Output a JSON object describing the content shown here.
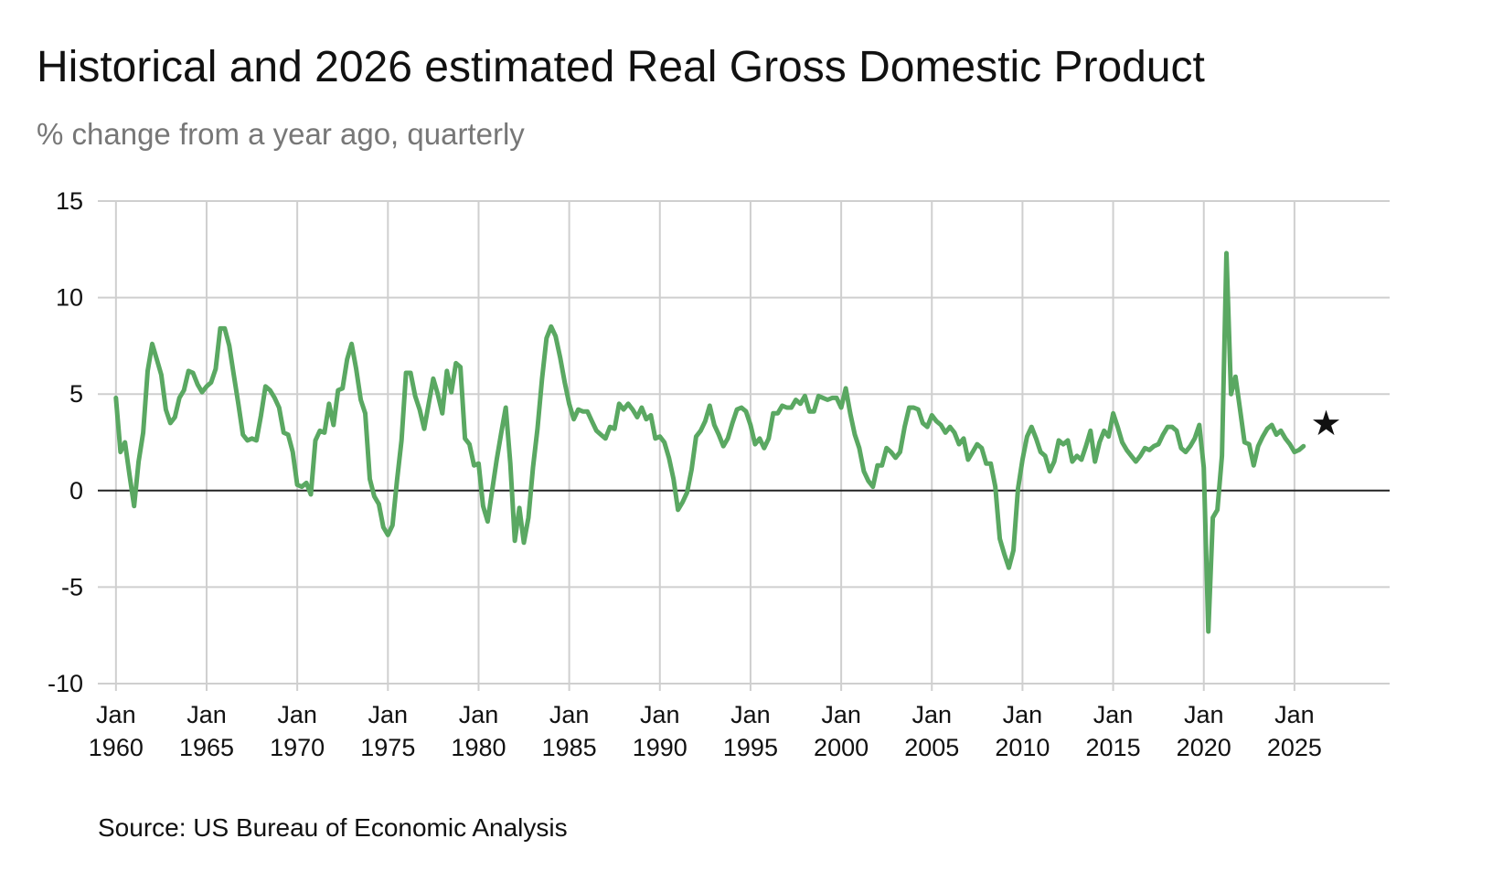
{
  "title": "Historical and 2026 estimated Real Gross Domestic Product",
  "subtitle": "% change from a year ago, quarterly",
  "source": "Source: US Bureau of Economic Analysis",
  "colors": {
    "series": "#5aa862",
    "grid": "#cfcfcf",
    "zero_line": "#222222",
    "marker": "#111111"
  },
  "chart_data": {
    "type": "line",
    "title": "Historical and 2026 estimated Real Gross Domestic Product",
    "ylabel": "% change from a year ago, quarterly",
    "xlabel": "",
    "ylim": [
      -10,
      15
    ],
    "xlim": [
      1959.0,
      2030.25
    ],
    "grid": true,
    "y_ticks": [
      15,
      10,
      5,
      0,
      -5,
      -10
    ],
    "x_ticks": [
      {
        "x": 1960,
        "line1": "Jan",
        "line2": "1960"
      },
      {
        "x": 1965,
        "line1": "Jan",
        "line2": "1965"
      },
      {
        "x": 1970,
        "line1": "Jan",
        "line2": "1970"
      },
      {
        "x": 1975,
        "line1": "Jan",
        "line2": "1975"
      },
      {
        "x": 1980,
        "line1": "Jan",
        "line2": "1980"
      },
      {
        "x": 1985,
        "line1": "Jan",
        "line2": "1985"
      },
      {
        "x": 1990,
        "line1": "Jan",
        "line2": "1990"
      },
      {
        "x": 1995,
        "line1": "Jan",
        "line2": "1995"
      },
      {
        "x": 2000,
        "line1": "Jan",
        "line2": "2000"
      },
      {
        "x": 2005,
        "line1": "Jan",
        "line2": "2005"
      },
      {
        "x": 2010,
        "line1": "Jan",
        "line2": "2010"
      },
      {
        "x": 2015,
        "line1": "Jan",
        "line2": "2015"
      },
      {
        "x": 2020,
        "line1": "Jan",
        "line2": "2020"
      },
      {
        "x": 2025,
        "line1": "Jan",
        "line2": "2025"
      }
    ],
    "series": [
      {
        "name": "Real GDP, % change from a year ago",
        "points": [
          [
            1960.0,
            4.8
          ],
          [
            1960.25,
            2.0
          ],
          [
            1960.5,
            2.5
          ],
          [
            1960.75,
            0.8
          ],
          [
            1961.0,
            -0.8
          ],
          [
            1961.25,
            1.5
          ],
          [
            1961.5,
            3.0
          ],
          [
            1961.75,
            6.2
          ],
          [
            1962.0,
            7.6
          ],
          [
            1962.25,
            6.8
          ],
          [
            1962.5,
            6.0
          ],
          [
            1962.75,
            4.2
          ],
          [
            1963.0,
            3.5
          ],
          [
            1963.25,
            3.8
          ],
          [
            1963.5,
            4.8
          ],
          [
            1963.75,
            5.2
          ],
          [
            1964.0,
            6.2
          ],
          [
            1964.25,
            6.1
          ],
          [
            1964.5,
            5.5
          ],
          [
            1964.75,
            5.1
          ],
          [
            1965.0,
            5.4
          ],
          [
            1965.25,
            5.6
          ],
          [
            1965.5,
            6.3
          ],
          [
            1965.75,
            8.4
          ],
          [
            1966.0,
            8.4
          ],
          [
            1966.25,
            7.5
          ],
          [
            1966.5,
            6.0
          ],
          [
            1966.75,
            4.5
          ],
          [
            1967.0,
            2.9
          ],
          [
            1967.25,
            2.6
          ],
          [
            1967.5,
            2.7
          ],
          [
            1967.75,
            2.6
          ],
          [
            1968.0,
            3.9
          ],
          [
            1968.25,
            5.4
          ],
          [
            1968.5,
            5.2
          ],
          [
            1968.75,
            4.8
          ],
          [
            1969.0,
            4.3
          ],
          [
            1969.25,
            3.0
          ],
          [
            1969.5,
            2.9
          ],
          [
            1969.75,
            2.0
          ],
          [
            1970.0,
            0.3
          ],
          [
            1970.25,
            0.2
          ],
          [
            1970.5,
            0.4
          ],
          [
            1970.75,
            -0.2
          ],
          [
            1971.0,
            2.6
          ],
          [
            1971.25,
            3.1
          ],
          [
            1971.5,
            3.0
          ],
          [
            1971.75,
            4.5
          ],
          [
            1972.0,
            3.4
          ],
          [
            1972.25,
            5.2
          ],
          [
            1972.5,
            5.3
          ],
          [
            1972.75,
            6.8
          ],
          [
            1973.0,
            7.6
          ],
          [
            1973.25,
            6.3
          ],
          [
            1973.5,
            4.7
          ],
          [
            1973.75,
            4.0
          ],
          [
            1974.0,
            0.6
          ],
          [
            1974.25,
            -0.3
          ],
          [
            1974.5,
            -0.7
          ],
          [
            1974.75,
            -1.9
          ],
          [
            1975.0,
            -2.3
          ],
          [
            1975.25,
            -1.8
          ],
          [
            1975.5,
            0.5
          ],
          [
            1975.75,
            2.6
          ],
          [
            1976.0,
            6.1
          ],
          [
            1976.25,
            6.1
          ],
          [
            1976.5,
            4.9
          ],
          [
            1976.75,
            4.2
          ],
          [
            1977.0,
            3.2
          ],
          [
            1977.25,
            4.5
          ],
          [
            1977.5,
            5.8
          ],
          [
            1977.75,
            5.0
          ],
          [
            1978.0,
            4.0
          ],
          [
            1978.25,
            6.2
          ],
          [
            1978.5,
            5.1
          ],
          [
            1978.75,
            6.6
          ],
          [
            1979.0,
            6.4
          ],
          [
            1979.25,
            2.7
          ],
          [
            1979.5,
            2.4
          ],
          [
            1979.75,
            1.3
          ],
          [
            1980.0,
            1.4
          ],
          [
            1980.25,
            -0.8
          ],
          [
            1980.5,
            -1.6
          ],
          [
            1980.75,
            0.0
          ],
          [
            1981.0,
            1.6
          ],
          [
            1981.25,
            3.0
          ],
          [
            1981.5,
            4.3
          ],
          [
            1981.75,
            1.4
          ],
          [
            1982.0,
            -2.6
          ],
          [
            1982.25,
            -0.9
          ],
          [
            1982.5,
            -2.7
          ],
          [
            1982.75,
            -1.4
          ],
          [
            1983.0,
            1.2
          ],
          [
            1983.25,
            3.2
          ],
          [
            1983.5,
            5.8
          ],
          [
            1983.75,
            7.9
          ],
          [
            1984.0,
            8.5
          ],
          [
            1984.25,
            8.0
          ],
          [
            1984.5,
            6.9
          ],
          [
            1984.75,
            5.6
          ],
          [
            1985.0,
            4.5
          ],
          [
            1985.25,
            3.7
          ],
          [
            1985.5,
            4.2
          ],
          [
            1985.75,
            4.1
          ],
          [
            1986.0,
            4.1
          ],
          [
            1986.25,
            3.6
          ],
          [
            1986.5,
            3.1
          ],
          [
            1986.75,
            2.9
          ],
          [
            1987.0,
            2.7
          ],
          [
            1987.25,
            3.3
          ],
          [
            1987.5,
            3.2
          ],
          [
            1987.75,
            4.5
          ],
          [
            1988.0,
            4.2
          ],
          [
            1988.25,
            4.5
          ],
          [
            1988.5,
            4.2
          ],
          [
            1988.75,
            3.8
          ],
          [
            1989.0,
            4.3
          ],
          [
            1989.25,
            3.7
          ],
          [
            1989.5,
            3.9
          ],
          [
            1989.75,
            2.7
          ],
          [
            1990.0,
            2.8
          ],
          [
            1990.25,
            2.5
          ],
          [
            1990.5,
            1.7
          ],
          [
            1990.75,
            0.6
          ],
          [
            1991.0,
            -1.0
          ],
          [
            1991.25,
            -0.6
          ],
          [
            1991.5,
            -0.1
          ],
          [
            1991.75,
            1.1
          ],
          [
            1992.0,
            2.8
          ],
          [
            1992.25,
            3.1
          ],
          [
            1992.5,
            3.6
          ],
          [
            1992.75,
            4.4
          ],
          [
            1993.0,
            3.4
          ],
          [
            1993.25,
            2.9
          ],
          [
            1993.5,
            2.3
          ],
          [
            1993.75,
            2.7
          ],
          [
            1994.0,
            3.5
          ],
          [
            1994.25,
            4.2
          ],
          [
            1994.5,
            4.3
          ],
          [
            1994.75,
            4.1
          ],
          [
            1995.0,
            3.4
          ],
          [
            1995.25,
            2.4
          ],
          [
            1995.5,
            2.7
          ],
          [
            1995.75,
            2.2
          ],
          [
            1996.0,
            2.7
          ],
          [
            1996.25,
            4.0
          ],
          [
            1996.5,
            4.0
          ],
          [
            1996.75,
            4.4
          ],
          [
            1997.0,
            4.3
          ],
          [
            1997.25,
            4.3
          ],
          [
            1997.5,
            4.7
          ],
          [
            1997.75,
            4.5
          ],
          [
            1998.0,
            4.9
          ],
          [
            1998.25,
            4.1
          ],
          [
            1998.5,
            4.1
          ],
          [
            1998.75,
            4.9
          ],
          [
            1999.0,
            4.8
          ],
          [
            1999.25,
            4.7
          ],
          [
            1999.5,
            4.8
          ],
          [
            1999.75,
            4.8
          ],
          [
            2000.0,
            4.3
          ],
          [
            2000.25,
            5.3
          ],
          [
            2000.5,
            4.0
          ],
          [
            2000.75,
            2.9
          ],
          [
            2001.0,
            2.2
          ],
          [
            2001.25,
            1.0
          ],
          [
            2001.5,
            0.5
          ],
          [
            2001.75,
            0.2
          ],
          [
            2002.0,
            1.3
          ],
          [
            2002.25,
            1.3
          ],
          [
            2002.5,
            2.2
          ],
          [
            2002.75,
            2.0
          ],
          [
            2003.0,
            1.7
          ],
          [
            2003.25,
            2.0
          ],
          [
            2003.5,
            3.3
          ],
          [
            2003.75,
            4.3
          ],
          [
            2004.0,
            4.3
          ],
          [
            2004.25,
            4.2
          ],
          [
            2004.5,
            3.5
          ],
          [
            2004.75,
            3.3
          ],
          [
            2005.0,
            3.9
          ],
          [
            2005.25,
            3.6
          ],
          [
            2005.5,
            3.4
          ],
          [
            2005.75,
            3.0
          ],
          [
            2006.0,
            3.3
          ],
          [
            2006.25,
            3.0
          ],
          [
            2006.5,
            2.4
          ],
          [
            2006.75,
            2.7
          ],
          [
            2007.0,
            1.6
          ],
          [
            2007.25,
            2.0
          ],
          [
            2007.5,
            2.4
          ],
          [
            2007.75,
            2.2
          ],
          [
            2008.0,
            1.4
          ],
          [
            2008.25,
            1.4
          ],
          [
            2008.5,
            0.2
          ],
          [
            2008.75,
            -2.5
          ],
          [
            2009.0,
            -3.3
          ],
          [
            2009.25,
            -4.0
          ],
          [
            2009.5,
            -3.1
          ],
          [
            2009.75,
            0.1
          ],
          [
            2010.0,
            1.6
          ],
          [
            2010.25,
            2.8
          ],
          [
            2010.5,
            3.3
          ],
          [
            2010.75,
            2.7
          ],
          [
            2011.0,
            2.0
          ],
          [
            2011.25,
            1.8
          ],
          [
            2011.5,
            1.0
          ],
          [
            2011.75,
            1.5
          ],
          [
            2012.0,
            2.6
          ],
          [
            2012.25,
            2.4
          ],
          [
            2012.5,
            2.6
          ],
          [
            2012.75,
            1.5
          ],
          [
            2013.0,
            1.8
          ],
          [
            2013.25,
            1.6
          ],
          [
            2013.5,
            2.3
          ],
          [
            2013.75,
            3.1
          ],
          [
            2014.0,
            1.5
          ],
          [
            2014.25,
            2.5
          ],
          [
            2014.5,
            3.1
          ],
          [
            2014.75,
            2.8
          ],
          [
            2015.0,
            4.0
          ],
          [
            2015.25,
            3.3
          ],
          [
            2015.5,
            2.5
          ],
          [
            2015.75,
            2.1
          ],
          [
            2016.0,
            1.8
          ],
          [
            2016.25,
            1.5
          ],
          [
            2016.5,
            1.8
          ],
          [
            2016.75,
            2.2
          ],
          [
            2017.0,
            2.1
          ],
          [
            2017.25,
            2.3
          ],
          [
            2017.5,
            2.4
          ],
          [
            2017.75,
            2.9
          ],
          [
            2018.0,
            3.3
          ],
          [
            2018.25,
            3.3
          ],
          [
            2018.5,
            3.1
          ],
          [
            2018.75,
            2.2
          ],
          [
            2019.0,
            2.0
          ],
          [
            2019.25,
            2.3
          ],
          [
            2019.5,
            2.7
          ],
          [
            2019.75,
            3.4
          ],
          [
            2020.0,
            1.2
          ],
          [
            2020.25,
            -7.3
          ],
          [
            2020.25,
            -7.3
          ],
          [
            2020.5,
            -1.4
          ],
          [
            2020.75,
            -1.0
          ],
          [
            2021.0,
            1.8
          ],
          [
            2021.25,
            12.3
          ],
          [
            2021.5,
            5.0
          ],
          [
            2021.75,
            5.9
          ],
          [
            2022.0,
            4.2
          ],
          [
            2022.25,
            2.5
          ],
          [
            2022.5,
            2.4
          ],
          [
            2022.75,
            1.3
          ],
          [
            2023.0,
            2.3
          ],
          [
            2023.25,
            2.8
          ],
          [
            2023.5,
            3.2
          ],
          [
            2023.75,
            3.4
          ],
          [
            2024.0,
            2.9
          ],
          [
            2024.25,
            3.1
          ],
          [
            2024.5,
            2.7
          ],
          [
            2024.75,
            2.4
          ],
          [
            2025.0,
            2.0
          ],
          [
            2025.25,
            2.1
          ],
          [
            2025.5,
            2.3
          ]
        ]
      }
    ],
    "annotations": [
      {
        "type": "marker",
        "symbol": "★",
        "x": 2026.75,
        "y": 3.5,
        "label": "2026 estimate"
      }
    ]
  }
}
